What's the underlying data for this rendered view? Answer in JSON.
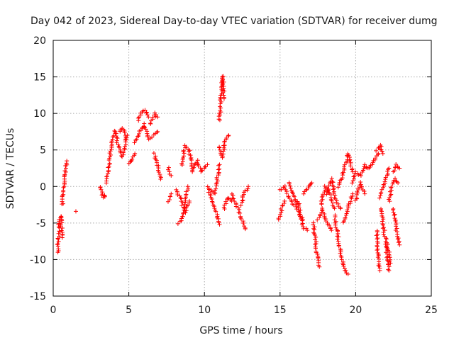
{
  "chart_data": {
    "type": "scatter",
    "title": "Day 042 of 2023, Sidereal Day-to-day VTEC variation (SDTVAR) for receiver dumg",
    "xlabel": "GPS time / hours",
    "ylabel": "SDTVAR / TECUs",
    "xlim": [
      0,
      25
    ],
    "ylim": [
      -15,
      20
    ],
    "xticks": [
      0,
      5,
      10,
      15,
      20,
      25
    ],
    "yticks": [
      -15,
      -10,
      -5,
      0,
      5,
      10,
      15,
      20
    ],
    "xtick_labels": [
      "0",
      "5",
      "10",
      "15",
      "20",
      "25"
    ],
    "ytick_labels": [
      "-15",
      "-10",
      "-5",
      "0",
      "5",
      "10",
      "15",
      "20"
    ],
    "grid": true,
    "marker": "+",
    "color": "#ff0000",
    "arcs": [
      {
        "x": [
          0.3,
          0.4,
          0.5,
          0.6
        ],
        "y": [
          -9,
          -5,
          -4,
          -7
        ]
      },
      {
        "x": [
          0.6,
          0.7,
          0.8,
          0.9
        ],
        "y": [
          -2.5,
          0,
          2,
          3.5
        ]
      },
      {
        "x": [
          1.5
        ],
        "y": [
          -3.4
        ]
      },
      {
        "x": [
          3.1,
          3.2,
          3.3,
          3.4
        ],
        "y": [
          0,
          -0.8,
          -1.5,
          -1.2
        ]
      },
      {
        "x": [
          3.5,
          3.7,
          3.9,
          4.1
        ],
        "y": [
          0.5,
          3,
          6.5,
          7.5
        ]
      },
      {
        "x": [
          4.1,
          4.3,
          4.6,
          4.9
        ],
        "y": [
          7.5,
          5.5,
          4,
          7
        ]
      },
      {
        "x": [
          4.4,
          4.6,
          4.8
        ],
        "y": [
          7.5,
          8,
          6.5
        ]
      },
      {
        "x": [
          5.0,
          5.2,
          5.4
        ],
        "y": [
          3.2,
          3.5,
          4.5
        ]
      },
      {
        "x": [
          5.4,
          5.7,
          6.0,
          6.3,
          6.6,
          6.9
        ],
        "y": [
          6,
          7.5,
          8.5,
          6.5,
          7,
          7.5
        ]
      },
      {
        "x": [
          5.6,
          5.8,
          6.1,
          6.3
        ],
        "y": [
          9,
          10,
          10.5,
          9.5
        ]
      },
      {
        "x": [
          6.4,
          6.7,
          6.9
        ],
        "y": [
          8.5,
          10,
          9.5
        ]
      },
      {
        "x": [
          6.7,
          6.9,
          7.1
        ],
        "y": [
          4.5,
          3,
          1
        ]
      },
      {
        "x": [
          7.6,
          7.8
        ],
        "y": [
          2.5,
          1.5
        ]
      },
      {
        "x": [
          7.6,
          7.8
        ],
        "y": [
          -2,
          -1
        ]
      },
      {
        "x": [
          8.1,
          8.4,
          8.7,
          9.0
        ],
        "y": [
          -0.5,
          -1.5,
          -3.5,
          -2
        ]
      },
      {
        "x": [
          8.3,
          8.6,
          8.9
        ],
        "y": [
          -5,
          -4,
          0
        ]
      },
      {
        "x": [
          8.5,
          8.7,
          9.0,
          9.2
        ],
        "y": [
          3,
          5.5,
          5,
          2
        ]
      },
      {
        "x": [
          9.2,
          9.5,
          9.8,
          10.2
        ],
        "y": [
          2.5,
          3.5,
          2,
          3
        ]
      },
      {
        "x": [
          10.2,
          10.5,
          10.8,
          11.0
        ],
        "y": [
          0,
          -2,
          -3.5,
          -5.2
        ]
      },
      {
        "x": [
          10.4,
          10.7,
          11.0
        ],
        "y": [
          -0.5,
          -1,
          3
        ]
      },
      {
        "x": [
          11.0,
          11.1,
          11.2,
          11.3
        ],
        "y": [
          9,
          13,
          15.2,
          12
        ]
      },
      {
        "x": [
          11.0,
          11.2,
          11.4,
          11.6
        ],
        "y": [
          5.5,
          4,
          6.5,
          7
        ]
      },
      {
        "x": [
          11.3,
          11.5,
          11.8
        ],
        "y": [
          -3,
          -1.5,
          -2
        ]
      },
      {
        "x": [
          11.8,
          12.1,
          12.4,
          12.7
        ],
        "y": [
          -1,
          -2.5,
          -4,
          -5.8
        ]
      },
      {
        "x": [
          12.4,
          12.6,
          12.9
        ],
        "y": [
          -2.5,
          -1,
          0
        ]
      },
      {
        "x": [
          14.9,
          15.1,
          15.3
        ],
        "y": [
          -4.5,
          -3,
          -2
        ]
      },
      {
        "x": [
          15.0,
          15.3,
          15.6,
          15.9
        ],
        "y": [
          -0.5,
          0,
          -1.5,
          -2.5
        ]
      },
      {
        "x": [
          15.6,
          15.9,
          16.2,
          16.5
        ],
        "y": [
          0.5,
          -1,
          -3.5,
          -4.5
        ]
      },
      {
        "x": [
          16.2,
          16.5,
          16.8
        ],
        "y": [
          -2,
          -5.5,
          -6
        ]
      },
      {
        "x": [
          16.6,
          16.9,
          17.1
        ],
        "y": [
          -1,
          0,
          0.5
        ]
      },
      {
        "x": [
          17.2,
          17.4,
          17.6
        ],
        "y": [
          -5,
          -8.5,
          -11
        ]
      },
      {
        "x": [
          17.5,
          17.8,
          18.1,
          18.4
        ],
        "y": [
          -4.5,
          -3,
          -5,
          -6
        ]
      },
      {
        "x": [
          17.7,
          18.0,
          18.3,
          18.6
        ],
        "y": [
          -2.5,
          0,
          -1,
          -3
        ]
      },
      {
        "x": [
          18.1,
          18.4,
          18.7,
          19.0
        ],
        "y": [
          -1,
          1,
          -2,
          -3
        ]
      },
      {
        "x": [
          18.6,
          18.9,
          19.2,
          19.5
        ],
        "y": [
          -4,
          -8,
          -11,
          -12
        ]
      },
      {
        "x": [
          18.9,
          19.2,
          19.5,
          19.8
        ],
        "y": [
          0,
          2,
          4.5,
          2
        ]
      },
      {
        "x": [
          19.2,
          19.5,
          19.8
        ],
        "y": [
          -5,
          -3,
          -1
        ]
      },
      {
        "x": [
          19.8,
          20.0,
          20.3,
          20.6
        ],
        "y": [
          0.5,
          2,
          1.5,
          3
        ]
      },
      {
        "x": [
          20.0,
          20.3,
          20.6
        ],
        "y": [
          -2,
          0.5,
          -1
        ]
      },
      {
        "x": [
          20.6,
          20.9,
          21.2,
          21.5
        ],
        "y": [
          2.8,
          2.5,
          3.5,
          4.5
        ]
      },
      {
        "x": [
          21.4,
          21.6,
          21.8
        ],
        "y": [
          5,
          5.6,
          4.5
        ]
      },
      {
        "x": [
          21.4,
          21.5,
          21.6
        ],
        "y": [
          -6,
          -10.5,
          -11.5
        ]
      },
      {
        "x": [
          21.7,
          21.9,
          22.1,
          22.3
        ],
        "y": [
          -3,
          -6.5,
          -8,
          -10.5
        ]
      },
      {
        "x": [
          21.6,
          21.9,
          22.2
        ],
        "y": [
          -1.5,
          0.5,
          2.5
        ]
      },
      {
        "x": [
          22.2,
          22.4,
          22.6,
          22.8
        ],
        "y": [
          -2,
          0,
          1,
          0.5
        ]
      },
      {
        "x": [
          22.5,
          22.7,
          22.9
        ],
        "y": [
          2,
          3,
          2.5
        ]
      },
      {
        "x": [
          22.5,
          22.7,
          22.9
        ],
        "y": [
          -3,
          -6,
          -8
        ]
      },
      {
        "x": [
          22.0,
          22.2
        ],
        "y": [
          -8,
          -11.5
        ]
      }
    ]
  }
}
